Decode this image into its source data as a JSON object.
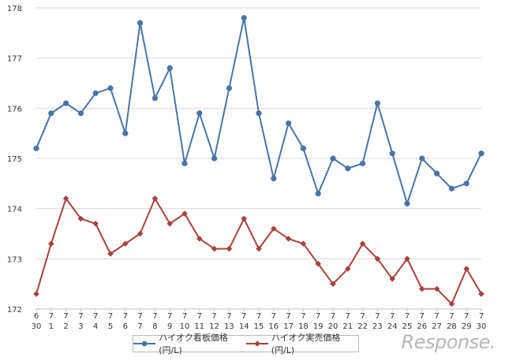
{
  "chart_data": {
    "type": "line",
    "title": "",
    "xlabel": "",
    "ylabel": "",
    "ylim": [
      172,
      178
    ],
    "yticks": [
      "172",
      "173",
      "174",
      "175",
      "176",
      "177",
      "178"
    ],
    "categories": [
      {
        "month": "6",
        "day": "30"
      },
      {
        "month": "7",
        "day": "1"
      },
      {
        "month": "7",
        "day": "2"
      },
      {
        "month": "7",
        "day": "3"
      },
      {
        "month": "7",
        "day": "4"
      },
      {
        "month": "7",
        "day": "5"
      },
      {
        "month": "7",
        "day": "6"
      },
      {
        "month": "7",
        "day": "7"
      },
      {
        "month": "7",
        "day": "8"
      },
      {
        "month": "7",
        "day": "9"
      },
      {
        "month": "7",
        "day": "10"
      },
      {
        "month": "7",
        "day": "11"
      },
      {
        "month": "7",
        "day": "12"
      },
      {
        "month": "7",
        "day": "13"
      },
      {
        "month": "7",
        "day": "14"
      },
      {
        "month": "7",
        "day": "15"
      },
      {
        "month": "7",
        "day": "16"
      },
      {
        "month": "7",
        "day": "17"
      },
      {
        "month": "7",
        "day": "18"
      },
      {
        "month": "7",
        "day": "19"
      },
      {
        "month": "7",
        "day": "20"
      },
      {
        "month": "7",
        "day": "21"
      },
      {
        "month": "7",
        "day": "22"
      },
      {
        "month": "7",
        "day": "23"
      },
      {
        "month": "7",
        "day": "24"
      },
      {
        "month": "7",
        "day": "25"
      },
      {
        "month": "7",
        "day": "26"
      },
      {
        "month": "7",
        "day": "27"
      },
      {
        "month": "7",
        "day": "28"
      },
      {
        "month": "7",
        "day": "29"
      },
      {
        "month": "7",
        "day": "30"
      }
    ],
    "series": [
      {
        "name": "ハイオク看板価格(円/L)",
        "color": "#4a74a8",
        "marker": "circle",
        "values": [
          175.2,
          175.9,
          176.1,
          175.9,
          176.3,
          176.4,
          175.5,
          177.7,
          176.2,
          176.8,
          174.9,
          175.9,
          175.0,
          176.4,
          177.8,
          175.9,
          174.6,
          175.7,
          175.2,
          174.3,
          175.0,
          174.8,
          174.9,
          176.1,
          175.1,
          174.1,
          175.0,
          174.7,
          174.4,
          174.5,
          175.1
        ]
      },
      {
        "name": "ハイオク実売価格(円/L)",
        "color": "#a8423d",
        "marker": "diamond",
        "values": [
          172.3,
          173.3,
          174.2,
          173.8,
          173.7,
          173.1,
          173.3,
          173.5,
          174.2,
          173.7,
          173.9,
          173.4,
          173.2,
          173.2,
          173.8,
          173.2,
          173.6,
          173.4,
          173.3,
          172.9,
          172.5,
          172.8,
          173.3,
          173.0,
          172.6,
          173.0,
          172.4,
          172.4,
          172.1,
          172.8,
          172.3
        ]
      }
    ],
    "grid": true,
    "legend_position": "bottom"
  },
  "watermark": "Response."
}
